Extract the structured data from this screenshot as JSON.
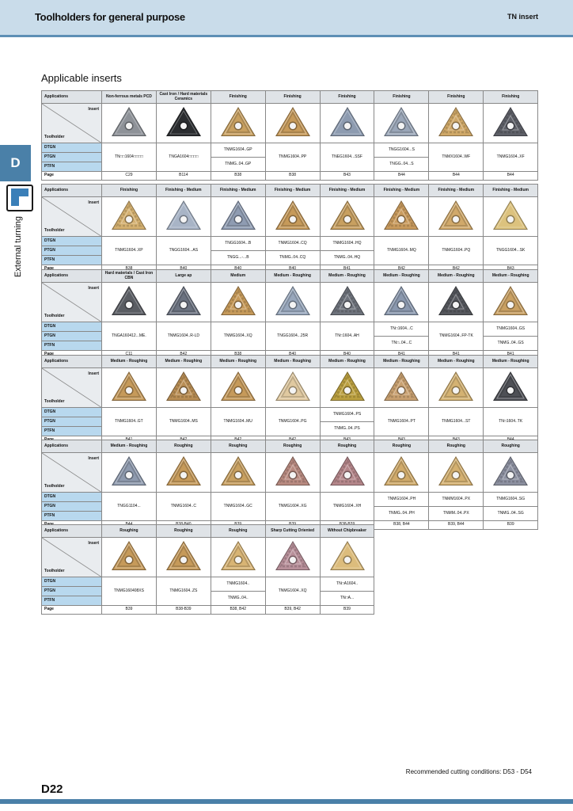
{
  "header": {
    "title": "Toolholders for general purpose",
    "right_label": "TN insert"
  },
  "side": {
    "tab_letter": "D",
    "vertical_label": "External turning"
  },
  "section_title": "Applicable inserts",
  "labels": {
    "applications": "Applications",
    "insert": "Insert",
    "toolholder": "Toolholder",
    "holders": [
      "DTGN",
      "PTGN",
      "PTFN"
    ],
    "page": "Page"
  },
  "colors": {
    "header_bg": "#c9dcea",
    "accent": "#4a80a8",
    "holder_label_bg": "#b8d8ee"
  },
  "blocks": [
    {
      "cols": [
        {
          "app": "Non-ferrous metals PCD",
          "color": "#8e9298",
          "style": "plain",
          "codes": [
            "TN□□1604□□□□"
          ],
          "page": "C29"
        },
        {
          "app": "Cast Iron / Hard materials Ceramics",
          "color": "#2b2d30",
          "style": "plain",
          "codes": [
            "TNGA1604□□□□"
          ],
          "page": "B114"
        },
        {
          "app": "Finishing",
          "color": "#c8a060",
          "style": "breaker",
          "codes": [
            "TNMG1604..GP",
            "TNMG..04..GP"
          ],
          "page": "B38"
        },
        {
          "app": "Finishing",
          "color": "#c69a5a",
          "style": "breaker",
          "codes": [
            "TNMG1604..PP"
          ],
          "page": "B38"
        },
        {
          "app": "Finishing",
          "color": "#8d9bb0",
          "style": "plain",
          "codes": [
            "TNEG1604...SSF"
          ],
          "page": "B43"
        },
        {
          "app": "Finishing",
          "color": "#9aa6b8",
          "style": "breaker",
          "codes": [
            "TNGG1604...S",
            "TNGG..04...S"
          ],
          "page": "B44"
        },
        {
          "app": "Finishing",
          "color": "#cfa868",
          "style": "wavy",
          "codes": [
            "TNMX1604..WF"
          ],
          "page": "B44"
        },
        {
          "app": "Finishing",
          "color": "#5e6068",
          "style": "wavy",
          "codes": [
            "TNMG1604..XF"
          ],
          "page": "B44"
        }
      ]
    },
    {
      "cols": [
        {
          "app": "Finishing",
          "color": "#d4b070",
          "style": "wavy",
          "codes": [
            "TNMG1604..XP"
          ],
          "page": "B38"
        },
        {
          "app": "Finishing - Medium",
          "color": "#a8b4c6",
          "style": "plain",
          "codes": [
            "TNGG1604...AS"
          ],
          "page": "B40"
        },
        {
          "app": "Finishing - Medium",
          "color": "#8f9cb2",
          "style": "breaker",
          "codes": [
            "TNGG1604...B",
            "TNGG...-...B"
          ],
          "page": "B40"
        },
        {
          "app": "Finishing - Medium",
          "color": "#c69a5a",
          "style": "breaker",
          "codes": [
            "TNMG1604..CQ",
            "TNMG..04..CQ"
          ],
          "page": "B40"
        },
        {
          "app": "Finishing - Medium",
          "color": "#c8a060",
          "style": "breaker",
          "codes": [
            "TNMG1604..HQ",
            "TNMG..04..HQ"
          ],
          "page": "B41"
        },
        {
          "app": "Finishing - Medium",
          "color": "#c99b5e",
          "style": "wavy",
          "codes": [
            "TNMG1604..MQ"
          ],
          "page": "B42"
        },
        {
          "app": "Finishing - Medium",
          "color": "#d1a96a",
          "style": "breaker",
          "codes": [
            "TNMG1604..PQ"
          ],
          "page": "B42"
        },
        {
          "app": "Finishing - Medium",
          "color": "#dcc27e",
          "style": "plain",
          "codes": [
            "TNGG1604...SK"
          ],
          "page": "B43"
        }
      ]
    },
    {
      "cols": [
        {
          "app": "Hard materials / Cast Iron CBN",
          "color": "#5a5d63",
          "style": "plain",
          "codes": [
            "TNGA160412...ME."
          ],
          "page": "C11"
        },
        {
          "app": "Large ap",
          "color": "#6b7280",
          "style": "breaker",
          "codes": [
            "TNMG1604..R-LD"
          ],
          "page": "B42"
        },
        {
          "app": "Medium",
          "color": "#c69a5a",
          "style": "wavy",
          "codes": [
            "TNMG1604..XQ"
          ],
          "page": "B38"
        },
        {
          "app": "Medium - Roughing",
          "color": "#98a7bc",
          "style": "breaker",
          "codes": [
            "TNGG1604...25R"
          ],
          "page": "B40"
        },
        {
          "app": "Medium - Roughing",
          "color": "#6e737c",
          "style": "wavy",
          "codes": [
            "TN□1604..AH"
          ],
          "page": "B40"
        },
        {
          "app": "Medium - Roughing",
          "color": "#8a98ae",
          "style": "breaker",
          "codes": [
            "TN□1604...C",
            "TN□..04...C"
          ],
          "page": "B41"
        },
        {
          "app": "Medium - Roughing",
          "color": "#55575d",
          "style": "wavy",
          "codes": [
            "TNMG1604..FP-TK"
          ],
          "page": "B41"
        },
        {
          "app": "Medium - Roughing",
          "color": "#c9a062",
          "style": "breaker",
          "codes": [
            "TNMG1604..GS",
            "TNMG..04..GS"
          ],
          "page": "B41"
        }
      ]
    },
    {
      "cols": [
        {
          "app": "Medium - Roughing",
          "color": "#c69a5a",
          "style": "breaker",
          "codes": [
            "TNMG1604..GT"
          ],
          "page": "B41"
        },
        {
          "app": "Medium - Roughing",
          "color": "#b98e55",
          "style": "wavy",
          "codes": [
            "TNMG1604..MS"
          ],
          "page": "B42"
        },
        {
          "app": "Medium - Roughing",
          "color": "#c69a5a",
          "style": "breaker",
          "codes": [
            "TNMG1604..MU"
          ],
          "page": "B42"
        },
        {
          "app": "Medium - Roughing",
          "color": "#e0c9a0",
          "style": "breaker",
          "codes": [
            "TNMG1604..PG"
          ],
          "page": "B42"
        },
        {
          "app": "Medium - Roughing",
          "color": "#bba040",
          "style": "wavy",
          "codes": [
            "TNMG1604..PS",
            "TNMG..04..PS"
          ],
          "page": "B43"
        },
        {
          "app": "Medium - Roughing",
          "color": "#c8a070",
          "style": "wavy",
          "codes": [
            "TNMG1604..PT"
          ],
          "page": "B43"
        },
        {
          "app": "Medium - Roughing",
          "color": "#d4b272",
          "style": "breaker",
          "codes": [
            "TNMG1604...ST"
          ],
          "page": "B43"
        },
        {
          "app": "Medium - Roughing",
          "color": "#4e5056",
          "style": "breaker",
          "codes": [
            "TN□1604..TK"
          ],
          "page": "B44"
        }
      ]
    },
    {
      "cols": [
        {
          "app": "Medium - Roughing",
          "color": "#8e9aae",
          "style": "breaker",
          "codes": [
            "TNGG1104..."
          ],
          "page": "B44"
        },
        {
          "app": "Roughing",
          "color": "#c69a5a",
          "style": "breaker",
          "codes": [
            "TNMG1604..C"
          ],
          "page": "B38-B40"
        },
        {
          "app": "Roughing",
          "color": "#c8a060",
          "style": "breaker",
          "codes": [
            "TNMG1604..GC"
          ],
          "page": "B39"
        },
        {
          "app": "Roughing",
          "color": "#b88a80",
          "style": "wavy",
          "codes": [
            "TNMG1604..XG"
          ],
          "page": "B39"
        },
        {
          "app": "Roughing",
          "color": "#b4868a",
          "style": "wavy",
          "codes": [
            "TNMG1604..XH"
          ],
          "page": "B38-B39"
        },
        {
          "app": "Roughing",
          "color": "#d0aa6a",
          "style": "breaker",
          "codes": [
            "TNMG1604..PH",
            "TNMG..04..PH"
          ],
          "page": "B38, B44"
        },
        {
          "app": "Roughing",
          "color": "#d4b070",
          "style": "breaker",
          "codes": [
            "TNMM1604..PX",
            "TNMM..04..PX"
          ],
          "page": "B39, B44"
        },
        {
          "app": "Roughing",
          "color": "#8c90a0",
          "style": "wavy",
          "codes": [
            "TNMG1604..SG",
            "TNMG..04..SG"
          ],
          "page": "B39"
        }
      ]
    },
    {
      "cols": [
        {
          "app": "Roughing",
          "color": "#c69a5a",
          "style": "breaker",
          "codes": [
            "TNMG160408XS"
          ],
          "page": "B39"
        },
        {
          "app": "Roughing",
          "color": "#c69a5a",
          "style": "breaker",
          "codes": [
            "TNMG1604..ZS"
          ],
          "page": "B38-B39"
        },
        {
          "app": "Roughing",
          "color": "#d8b474",
          "style": "breaker",
          "codes": [
            "TNMG1604..",
            "TNMG..04.."
          ],
          "page": "B38, B42"
        },
        {
          "app": "Sharp Cutting Oriented",
          "color": "#b8909a",
          "style": "wavy",
          "codes": [
            "TNMG1604..XQ"
          ],
          "page": "B39, B42"
        },
        {
          "app": "Without Chipbreaker",
          "color": "#dcbc7c",
          "style": "plain",
          "codes": [
            "TN□A1604..",
            "TN□A..."
          ],
          "page": "B39"
        }
      ]
    }
  ],
  "footer": {
    "note": "Recommended cutting conditions: D53 - D54",
    "page_number": "D22"
  }
}
